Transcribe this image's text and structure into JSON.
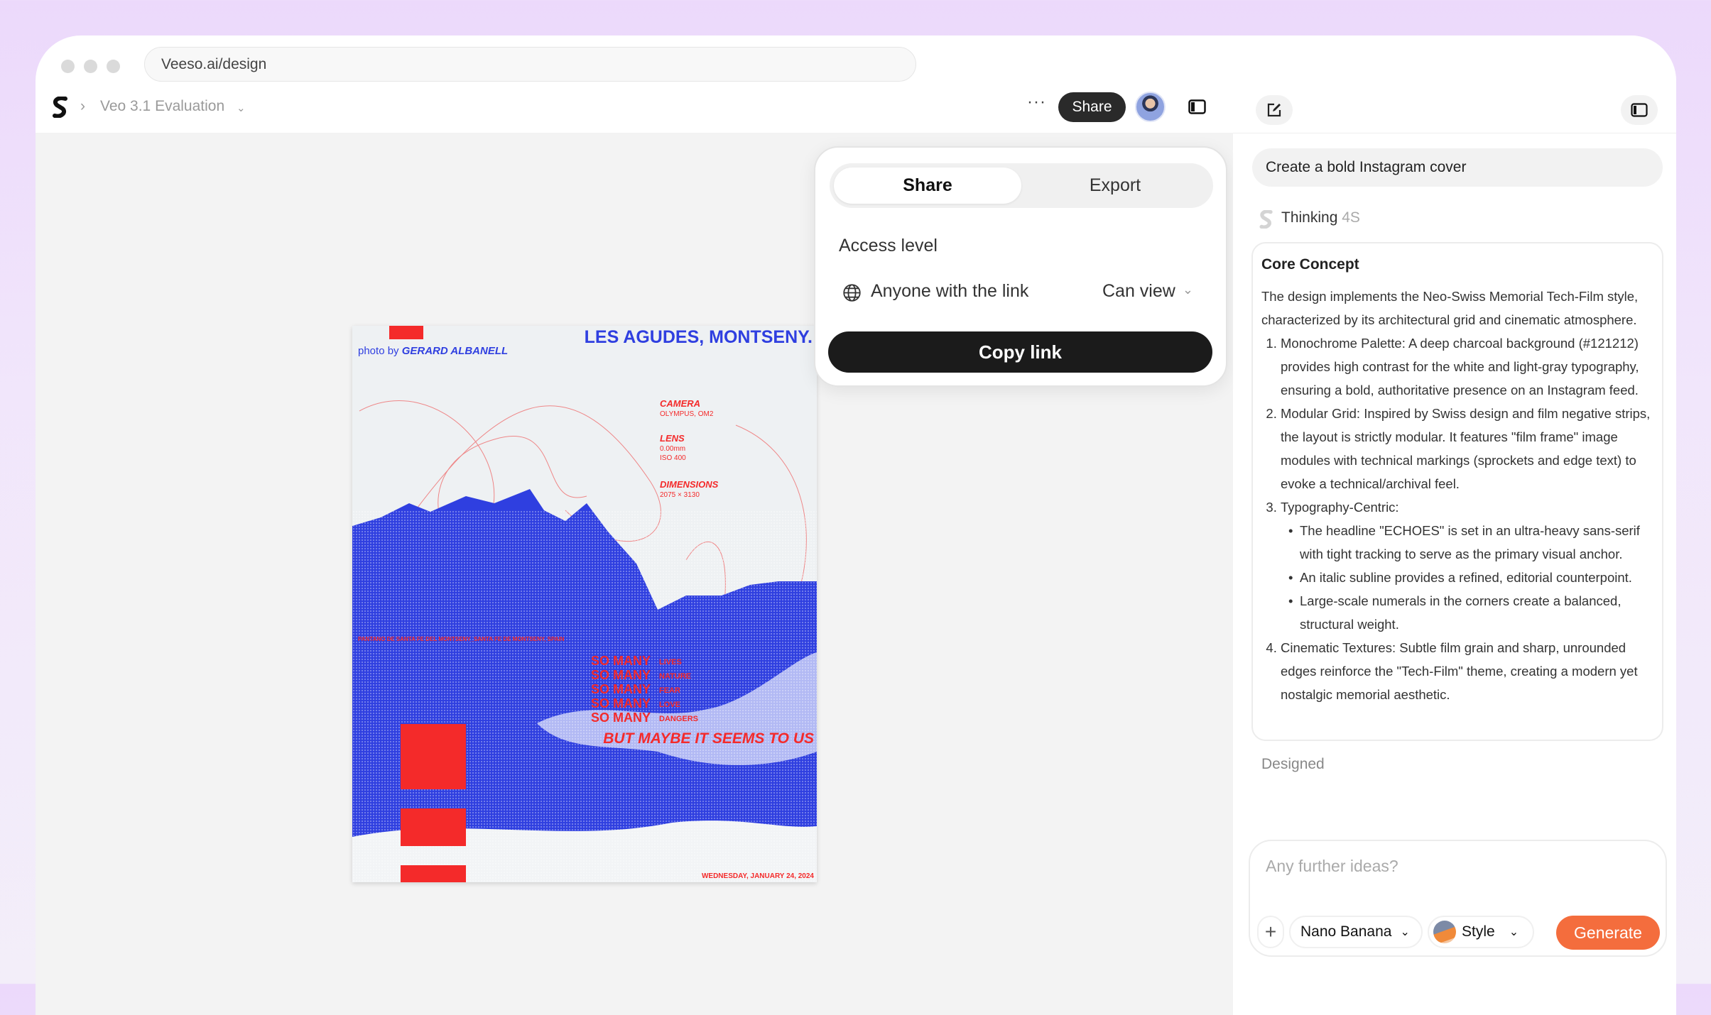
{
  "browser": {
    "url": "Veeso.ai/design"
  },
  "toolbar": {
    "project": "Veo 3.1 Evaluation",
    "share_label": "Share",
    "more_icon": "more-horizontal-icon",
    "panel_icon": "sidebar-toggle-icon"
  },
  "poster": {
    "photo_by": "photo by",
    "photographer": "GERARD ALBANELL",
    "title": "LES AGUDES, MONTSENY.",
    "specs": [
      {
        "label": "CAMERA",
        "lines": [
          "OLYMPUS, OM2"
        ]
      },
      {
        "label": "LENS",
        "lines": [
          "0.00mm",
          "ISO 400"
        ]
      },
      {
        "label": "DIMENSIONS",
        "lines": [
          "2075 × 3130"
        ]
      }
    ],
    "location": "PANTANO DE SANTA FE DEL MONTSENY_SANTA FE DE MONTSENY, SPAIN",
    "so_many": [
      {
        "head": "SO MANY",
        "word": "LIVES"
      },
      {
        "head": "SO MANY",
        "word": "NATURE"
      },
      {
        "head": "SO MANY",
        "word": "FEAR"
      },
      {
        "head": "SO MANY",
        "word": "LOVE"
      },
      {
        "head": "SO MANY",
        "word": "DANGERS"
      }
    ],
    "tagline": "BUT MAYBE IT SEEMS TO US",
    "date": "WEDNESDAY, JANUARY 24, 2024",
    "colors": {
      "blue": "#2f3fe0",
      "red": "#f42a2a",
      "paper": "#eef1f3"
    }
  },
  "share_popover": {
    "tabs": [
      "Share",
      "Export"
    ],
    "access_label": "Access level",
    "scope": "Anyone with the link",
    "permission": "Can view",
    "copy_label": "Copy link"
  },
  "chat": {
    "prompt": "Create a bold Instagram cover",
    "thinking_label": "Thinking",
    "thinking_time": "4S",
    "card": {
      "title": "Core Concept",
      "intro": "The design implements the Neo-Swiss Memorial Tech-Film style, characterized by its architectural grid and cinematic atmosphere.",
      "items": [
        "Monochrome Palette: A deep charcoal background (#121212) provides high contrast for the white and light-gray typography, ensuring a bold, authoritative presence on an Instagram feed.",
        "Modular Grid: Inspired by Swiss design and film negative strips, the layout is strictly modular. It features \"film frame\" image modules with technical markings (sprockets and edge text) to evoke a technical/archival feel.",
        "Typography-Centric:",
        "Cinematic Textures: Subtle film grain and sharp, unrounded edges reinforce the \"Tech-Film\" theme, creating a modern yet nostalgic memorial aesthetic."
      ],
      "sub_items": [
        "The headline \"ECHOES\" is set in an ultra-heavy sans-serif with tight tracking to serve as the primary visual anchor.",
        "An italic subline provides a refined, editorial counterpoint.",
        "Large-scale numerals in the corners create a balanced, structural weight."
      ]
    },
    "status": "Designed",
    "input": {
      "placeholder": "Any further ideas?",
      "model": "Nano Banana",
      "style": "Style",
      "generate": "Generate"
    },
    "accent": "#f46d3d"
  }
}
